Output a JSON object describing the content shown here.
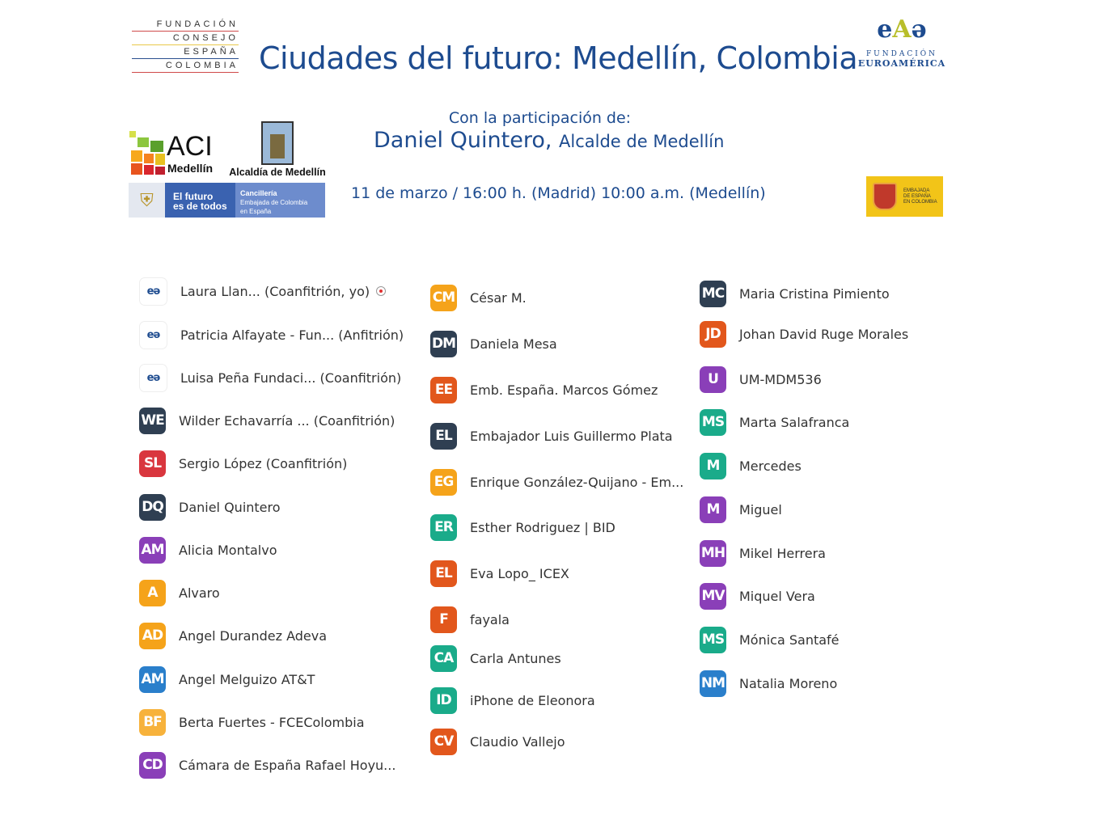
{
  "header": {
    "org_left": [
      "FUNDACIÓN",
      "CONSEJO",
      "ESPAÑA",
      "COLOMBIA"
    ],
    "title": "Ciudades del futuro: Medellín, Colombia",
    "org_right": {
      "line1": "FUNDACIÓN",
      "line2": "EUROAMÉRICA"
    },
    "participation_label": "Con la participación de:",
    "guest_name": "Daniel Quintero,",
    "guest_role": "Alcalde de Medellín",
    "date": "11 de marzo / 16:00 h. (Madrid)  10:00 a.m. (Medellín)"
  },
  "logos": {
    "aci": {
      "title": "ACI",
      "sub": "Medellín"
    },
    "alcaldia": "Alcaldía de Medellín",
    "banner": {
      "slogan_1": "El futuro",
      "slogan_2": "es de todos",
      "c1": "Cancillería",
      "c2": "Embajada de Colombia",
      "c3": "en España"
    },
    "embajada": [
      "EMBAJADA",
      "DE ESPAÑA",
      "EN COLOMBIA"
    ]
  },
  "colors": {
    "title": "#1d4b8f",
    "orange": "#f5a31a",
    "red_orange": "#e2571c",
    "red": "#d9363e",
    "teal": "#1aab8a",
    "slate": "#2f3f52",
    "purple": "#8a3fb8",
    "blue": "#2a7fcb"
  },
  "participants": [
    [
      {
        "initials": "",
        "name": "Laura Llan...  (Coanfitrión, yo)",
        "color": "logo",
        "recording": true
      },
      {
        "initials": "",
        "name": "Patricia Alfayate - Fun... (Anfitrión)",
        "color": "logo"
      },
      {
        "initials": "",
        "name": "Luisa Peña Fundaci... (Coanfitrión)",
        "color": "logo"
      },
      {
        "initials": "WE",
        "name": "Wilder Echavarría ...  (Coanfitrión)",
        "color": "#2f3f52"
      },
      {
        "initials": "SL",
        "name": "Sergio López (Coanfitrión)",
        "color": "#d9363e"
      },
      {
        "initials": "DQ",
        "name": "Daniel Quintero",
        "color": "#2f3f52"
      },
      {
        "initials": "AM",
        "name": "Alicia Montalvo",
        "color": "#8a3fb8"
      },
      {
        "initials": "A",
        "name": "Alvaro",
        "color": "#f5a31a"
      },
      {
        "initials": "AD",
        "name": "Angel Durandez Adeva",
        "color": "#f5a31a"
      },
      {
        "initials": "AM",
        "name": "Angel Melguizo AT&T",
        "color": "#2a7fcb"
      },
      {
        "initials": "BF",
        "name": "Berta Fuertes - FCEColombia",
        "color": "#f7b23b"
      },
      {
        "initials": "CD",
        "name": "Cámara de España Rafael Hoyu...",
        "color": "#8a3fb8"
      }
    ],
    [
      {
        "initials": "CM",
        "name": "César M.",
        "color": "#f5a31a"
      },
      {
        "initials": "DM",
        "name": "Daniela Mesa",
        "color": "#2f3f52"
      },
      {
        "initials": "EE",
        "name": "Emb. España. Marcos Gómez",
        "color": "#e2571c"
      },
      {
        "initials": "EL",
        "name": "Embajador Luis Guillermo Plata",
        "color": "#2f3f52"
      },
      {
        "initials": "EG",
        "name": "Enrique González-Quijano - Em...",
        "color": "#f5a31a"
      },
      {
        "initials": "ER",
        "name": "Esther Rodriguez | BID",
        "color": "#1aab8a"
      },
      {
        "initials": "EL",
        "name": "Eva Lopo_ ICEX",
        "color": "#e2571c"
      },
      {
        "initials": "F",
        "name": "fayala",
        "color": "#e2571c"
      },
      {
        "initials": "CA",
        "name": "Carla Antunes",
        "color": "#1aab8a"
      },
      {
        "initials": "ID",
        "name": "iPhone de Eleonora",
        "color": "#1aab8a"
      },
      {
        "initials": "CV",
        "name": "Claudio Vallejo",
        "color": "#e2571c"
      }
    ],
    [
      {
        "initials": "MC",
        "name": "Maria Cristina Pimiento",
        "color": "#2f3f52"
      },
      {
        "initials": "JD",
        "name": "Johan David Ruge Morales",
        "color": "#e2571c"
      },
      {
        "initials": "U",
        "name": "UM-MDM536",
        "color": "#8a3fb8"
      },
      {
        "initials": "MS",
        "name": "Marta Salafranca",
        "color": "#1aab8a"
      },
      {
        "initials": "M",
        "name": "Mercedes",
        "color": "#1aab8a"
      },
      {
        "initials": "M",
        "name": "Miguel",
        "color": "#8a3fb8"
      },
      {
        "initials": "MH",
        "name": "Mikel Herrera",
        "color": "#8a3fb8"
      },
      {
        "initials": "MV",
        "name": "Miquel Vera",
        "color": "#8a3fb8"
      },
      {
        "initials": "MS",
        "name": "Mónica Santafé",
        "color": "#1aab8a"
      },
      {
        "initials": "NM",
        "name": "Natalia Moreno",
        "color": "#2a7fcb"
      }
    ]
  ]
}
